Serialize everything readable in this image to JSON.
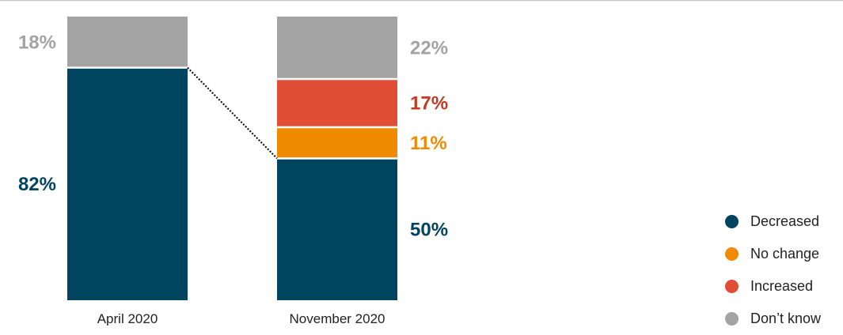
{
  "chart_data": {
    "type": "bar",
    "stacked": true,
    "categories": [
      "April 2020",
      "November 2020"
    ],
    "series": [
      {
        "name": "Decreased",
        "values": [
          82,
          50
        ],
        "color": "#00445f",
        "label_color": "#00445f",
        "labels": [
          "82%",
          "50%"
        ]
      },
      {
        "name": "No change",
        "values": [
          null,
          11
        ],
        "color": "#f08a00",
        "label_color": "#f08a00",
        "labels": [
          "",
          "11%"
        ]
      },
      {
        "name": "Increased",
        "values": [
          null,
          17
        ],
        "color": "#e24e35",
        "label_color": "#c4391f",
        "labels": [
          "",
          "17%"
        ]
      },
      {
        "name": "Don’t know",
        "values": [
          18,
          22
        ],
        "color": "#a3a3a3",
        "label_color": "#a3a3a3",
        "labels": [
          "18%",
          "22%"
        ]
      }
    ],
    "ylim": [
      0,
      100
    ],
    "label_side": [
      "left",
      "right"
    ],
    "connector": {
      "from_category": 0,
      "to_category": 1,
      "series": "Decreased",
      "style": "dotted"
    },
    "grid": false,
    "legend_position": "bottom-right",
    "axis_line_color": "#c8c8c8"
  },
  "legend": {
    "items": [
      {
        "label": "Decreased",
        "color": "#00445f"
      },
      {
        "label": "No change",
        "color": "#f08a00"
      },
      {
        "label": "Increased",
        "color": "#e24e35"
      },
      {
        "label": "Don’t know",
        "color": "#a3a3a3"
      }
    ]
  }
}
